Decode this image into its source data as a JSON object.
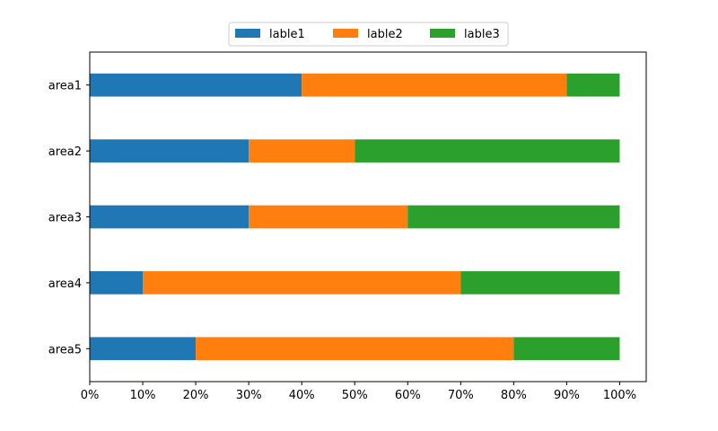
{
  "chart_data": {
    "type": "bar",
    "orientation": "horizontal",
    "stacked": true,
    "categories": [
      "area1",
      "area2",
      "area3",
      "area4",
      "area5"
    ],
    "series": [
      {
        "name": "lable1",
        "color": "#1f77b4",
        "values": [
          0.4,
          0.3,
          0.3,
          0.1,
          0.2
        ]
      },
      {
        "name": "lable2",
        "color": "#ff7f0e",
        "values": [
          0.5,
          0.2,
          0.3,
          0.6,
          0.6
        ]
      },
      {
        "name": "lable3",
        "color": "#2ca02c",
        "values": [
          0.1,
          0.5,
          0.4,
          0.3,
          0.2
        ]
      }
    ],
    "xlim": [
      0,
      1.05
    ],
    "xticks": [
      0,
      0.1,
      0.2,
      0.3,
      0.4,
      0.5,
      0.6,
      0.7,
      0.8,
      0.9,
      1.0
    ],
    "xtick_labels": [
      "0%",
      "10%",
      "20%",
      "30%",
      "40%",
      "50%",
      "60%",
      "70%",
      "80%",
      "90%",
      "100%"
    ],
    "title": "",
    "xlabel": "",
    "ylabel": "",
    "grid": false,
    "legend_position": "top-center",
    "legend_columns": 3
  }
}
